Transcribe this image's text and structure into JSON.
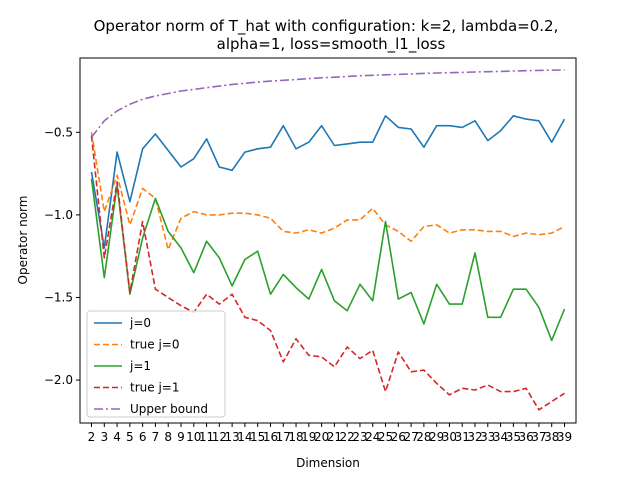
{
  "chart_data": {
    "type": "line",
    "title": [
      "Operator norm of T_hat with configuration: k=2, lambda=0.2,",
      "alpha=1, loss=smooth_l1_loss"
    ],
    "xlabel": "Dimension",
    "ylabel": "Operator norm",
    "xlim": [
      1.1,
      39.9
    ],
    "ylim": [
      -2.26,
      -0.05
    ],
    "xticks": [
      2,
      3,
      4,
      5,
      6,
      7,
      8,
      9,
      10,
      11,
      12,
      13,
      14,
      15,
      16,
      17,
      18,
      19,
      20,
      21,
      22,
      23,
      24,
      25,
      26,
      27,
      28,
      29,
      30,
      31,
      32,
      33,
      34,
      35,
      36,
      37,
      38,
      39
    ],
    "yticks": [
      -2.0,
      -1.5,
      -1.0,
      -0.5
    ],
    "ytick_labels": [
      "−2.0",
      "−1.5",
      "−1.0",
      "−0.5"
    ],
    "grid": false,
    "legend_position": "lower-left",
    "x": [
      2,
      3,
      4,
      5,
      6,
      7,
      8,
      9,
      10,
      11,
      12,
      13,
      14,
      15,
      16,
      17,
      18,
      19,
      20,
      21,
      22,
      23,
      24,
      25,
      26,
      27,
      28,
      29,
      30,
      31,
      32,
      33,
      34,
      35,
      36,
      37,
      38,
      39
    ],
    "series": [
      {
        "name": "j=0",
        "color": "#1f77b4",
        "style": "solid",
        "values": [
          -0.74,
          -1.2,
          -0.62,
          -0.92,
          -0.6,
          -0.51,
          -0.61,
          -0.71,
          -0.66,
          -0.54,
          -0.71,
          -0.73,
          -0.62,
          -0.6,
          -0.59,
          -0.46,
          -0.6,
          -0.56,
          -0.46,
          -0.58,
          -0.57,
          -0.56,
          -0.56,
          -0.4,
          -0.47,
          -0.48,
          -0.59,
          -0.46,
          -0.46,
          -0.47,
          -0.43,
          -0.55,
          -0.49,
          -0.4,
          -0.42,
          -0.43,
          -0.56,
          -0.42
        ]
      },
      {
        "name": "true j=0",
        "color": "#ff7f0e",
        "style": "dashed",
        "values": [
          -0.5,
          -0.98,
          -0.76,
          -1.06,
          -0.84,
          -0.9,
          -1.21,
          -1.02,
          -0.98,
          -1.0,
          -1.0,
          -0.99,
          -0.99,
          -1.0,
          -1.02,
          -1.1,
          -1.11,
          -1.09,
          -1.11,
          -1.08,
          -1.03,
          -1.03,
          -0.96,
          -1.06,
          -1.1,
          -1.16,
          -1.07,
          -1.06,
          -1.11,
          -1.09,
          -1.09,
          -1.1,
          -1.1,
          -1.13,
          -1.11,
          -1.12,
          -1.11,
          -1.07
        ]
      },
      {
        "name": "j=1",
        "color": "#2ca02c",
        "style": "solid",
        "values": [
          -0.78,
          -1.38,
          -0.82,
          -1.48,
          -1.14,
          -0.9,
          -1.1,
          -1.2,
          -1.35,
          -1.16,
          -1.26,
          -1.43,
          -1.27,
          -1.22,
          -1.48,
          -1.36,
          -1.44,
          -1.51,
          -1.33,
          -1.52,
          -1.58,
          -1.42,
          -1.52,
          -1.04,
          -1.51,
          -1.47,
          -1.66,
          -1.42,
          -1.54,
          -1.54,
          -1.23,
          -1.62,
          -1.62,
          -1.45,
          -1.45,
          -1.56,
          -1.76,
          -1.57
        ]
      },
      {
        "name": "true j=1",
        "color": "#d62728",
        "style": "dashed",
        "values": [
          -0.52,
          -1.26,
          -0.8,
          -1.47,
          -1.04,
          -1.45,
          -1.5,
          -1.55,
          -1.59,
          -1.48,
          -1.54,
          -1.48,
          -1.62,
          -1.64,
          -1.7,
          -1.89,
          -1.75,
          -1.85,
          -1.86,
          -1.92,
          -1.8,
          -1.87,
          -1.82,
          -2.07,
          -1.83,
          -1.95,
          -1.94,
          -2.02,
          -2.09,
          -2.05,
          -2.06,
          -2.03,
          -2.07,
          -2.07,
          -2.05,
          -2.18,
          -2.13,
          -2.08
        ]
      },
      {
        "name": "Upper bound",
        "color": "#9467bd",
        "style": "dashdot",
        "values": [
          -0.53,
          -0.43,
          -0.37,
          -0.33,
          -0.3,
          -0.28,
          -0.265,
          -0.25,
          -0.24,
          -0.23,
          -0.22,
          -0.21,
          -0.203,
          -0.196,
          -0.19,
          -0.185,
          -0.18,
          -0.175,
          -0.17,
          -0.166,
          -0.162,
          -0.158,
          -0.155,
          -0.152,
          -0.149,
          -0.146,
          -0.143,
          -0.141,
          -0.139,
          -0.137,
          -0.135,
          -0.133,
          -0.131,
          -0.129,
          -0.127,
          -0.125,
          -0.124,
          -0.122
        ]
      }
    ]
  }
}
